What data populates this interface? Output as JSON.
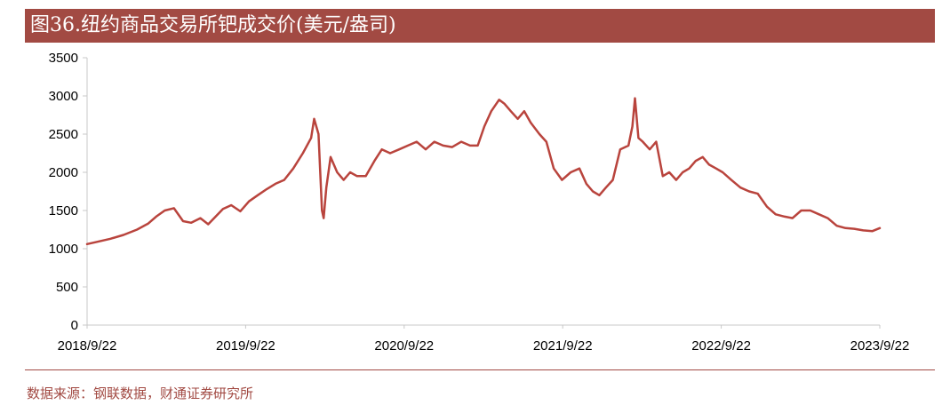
{
  "title": "图36.纽约商品交易所钯成交价(美元/盎司)",
  "source": "数据来源：钢联数据，财通证券研究所",
  "colors": {
    "accent": "#a24a43",
    "line": "#b9443d",
    "axis": "#c8c8c8"
  },
  "chart_data": {
    "type": "line",
    "title": "图36.纽约商品交易所钯成交价(美元/盎司)",
    "xlabel": "",
    "ylabel": "",
    "ylim": [
      0,
      3500
    ],
    "yticks": [
      0,
      500,
      1000,
      1500,
      2000,
      2500,
      3000,
      3500
    ],
    "xlim": [
      "2018-09-22",
      "2023-09-22"
    ],
    "xticks": [
      "2018/9/22",
      "2019/9/22",
      "2020/9/22",
      "2021/9/22",
      "2022/9/22",
      "2023/9/22"
    ],
    "grid": false,
    "legend": "none",
    "series": [
      {
        "x": [
          "2018-09-22",
          "2018-10-15",
          "2018-11-15",
          "2018-12-15",
          "2019-01-15",
          "2019-02-10",
          "2019-02-28",
          "2019-03-20",
          "2019-04-10",
          "2019-05-01",
          "2019-05-20",
          "2019-06-10",
          "2019-06-28",
          "2019-07-15",
          "2019-08-01",
          "2019-08-20",
          "2019-09-10",
          "2019-09-30",
          "2019-10-20",
          "2019-11-10",
          "2019-11-30",
          "2019-12-20",
          "2020-01-10",
          "2020-02-01",
          "2020-02-20",
          "2020-02-27",
          "2020-03-08",
          "2020-03-16",
          "2020-03-20",
          "2020-03-26",
          "2020-04-05",
          "2020-04-20",
          "2020-05-05",
          "2020-05-20",
          "2020-06-05",
          "2020-06-25",
          "2020-07-15",
          "2020-08-01",
          "2020-08-20",
          "2020-09-10",
          "2020-09-30",
          "2020-10-20",
          "2020-11-10",
          "2020-11-30",
          "2020-12-20",
          "2021-01-10",
          "2021-01-31",
          "2021-02-20",
          "2021-03-10",
          "2021-03-25",
          "2021-04-10",
          "2021-04-28",
          "2021-05-10",
          "2021-05-25",
          "2021-06-10",
          "2021-06-25",
          "2021-07-10",
          "2021-07-30",
          "2021-08-15",
          "2021-09-01",
          "2021-09-20",
          "2021-10-10",
          "2021-10-30",
          "2021-11-15",
          "2021-11-30",
          "2021-12-15",
          "2021-12-30",
          "2022-01-15",
          "2022-02-01",
          "2022-02-20",
          "2022-03-01",
          "2022-03-07",
          "2022-03-15",
          "2022-03-25",
          "2022-04-10",
          "2022-04-25",
          "2022-05-10",
          "2022-05-25",
          "2022-06-10",
          "2022-06-25",
          "2022-07-10",
          "2022-07-25",
          "2022-08-10",
          "2022-08-25",
          "2022-09-10",
          "2022-09-25",
          "2022-10-15",
          "2022-11-05",
          "2022-11-25",
          "2022-12-15",
          "2023-01-05",
          "2023-01-25",
          "2023-02-15",
          "2023-03-05",
          "2023-03-25",
          "2023-04-15",
          "2023-05-05",
          "2023-05-25",
          "2023-06-15",
          "2023-07-05",
          "2023-07-25",
          "2023-08-15",
          "2023-09-05",
          "2023-09-22"
        ],
        "values": [
          1060,
          1090,
          1130,
          1180,
          1250,
          1330,
          1420,
          1500,
          1530,
          1360,
          1340,
          1400,
          1320,
          1420,
          1520,
          1570,
          1490,
          1620,
          1700,
          1780,
          1850,
          1900,
          2050,
          2250,
          2450,
          2700,
          2500,
          1500,
          1400,
          1800,
          2200,
          2000,
          1900,
          2000,
          1950,
          1950,
          2150,
          2300,
          2250,
          2300,
          2350,
          2400,
          2300,
          2400,
          2350,
          2330,
          2400,
          2350,
          2350,
          2600,
          2800,
          2950,
          2900,
          2800,
          2700,
          2800,
          2650,
          2500,
          2400,
          2050,
          1900,
          2000,
          2050,
          1850,
          1750,
          1700,
          1800,
          1900,
          2300,
          2350,
          2600,
          2970,
          2450,
          2400,
          2300,
          2400,
          1950,
          2000,
          1900,
          2000,
          2050,
          2150,
          2200,
          2100,
          2050,
          2000,
          1900,
          1800,
          1750,
          1720,
          1550,
          1450,
          1420,
          1400,
          1500,
          1500,
          1450,
          1400,
          1300,
          1270,
          1260,
          1240,
          1230,
          1270
        ]
      }
    ]
  }
}
